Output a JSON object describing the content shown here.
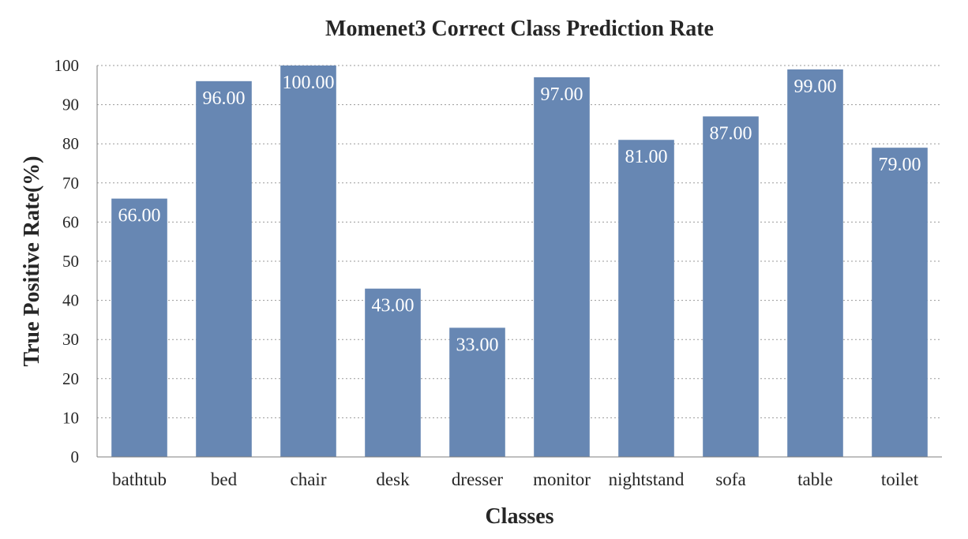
{
  "chart_data": {
    "type": "bar",
    "title": "Momenet3 Correct Class Prediction Rate",
    "xlabel": "Classes",
    "ylabel": "True Positive Rate(%)",
    "categories": [
      "bathtub",
      "bed",
      "chair",
      "desk",
      "dresser",
      "monitor",
      "nightstand",
      "sofa",
      "table",
      "toilet"
    ],
    "values": [
      66,
      96,
      100,
      43,
      33,
      97,
      81,
      87,
      99,
      79
    ],
    "data_labels": [
      "66.00",
      "96.00",
      "100.00",
      "43.00",
      "33.00",
      "97.00",
      "81.00",
      "87.00",
      "99.00",
      "79.00"
    ],
    "ylim": [
      0,
      100
    ],
    "yticks": [
      "0",
      "10",
      "20",
      "30",
      "40",
      "50",
      "60",
      "70",
      "80",
      "90",
      "100"
    ],
    "grid": true,
    "bar_color": "#6787b3"
  }
}
